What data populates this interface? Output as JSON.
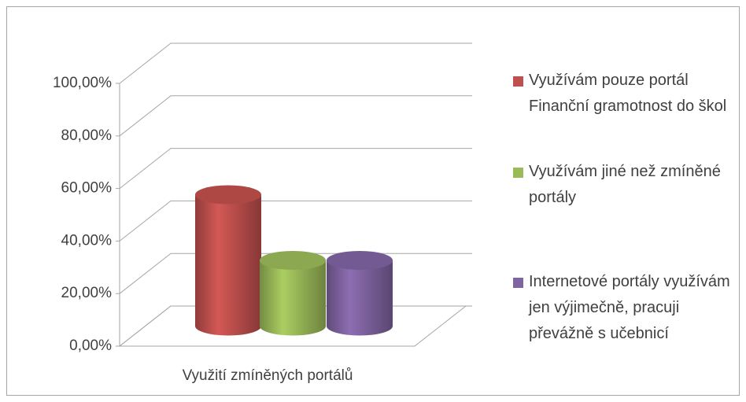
{
  "chart_data": {
    "type": "bar3d",
    "categories": [
      "Využití zmíněných portálů"
    ],
    "series": [
      {
        "name": "Využívám pouze portál Finanční gramotnost do škol",
        "color": "#c0504d",
        "values": [
          50
        ]
      },
      {
        "name": "Využívám jiné než zmíněné portály",
        "color": "#9bbb59",
        "values": [
          25
        ]
      },
      {
        "name": "Internetové portály využívám jen výjimečně, pracuji převážně s učebnicí",
        "color": "#8064a2",
        "values": [
          25
        ]
      }
    ],
    "ylim": [
      0,
      100
    ],
    "yticks": [
      {
        "value": 0,
        "label": "0,00%"
      },
      {
        "value": 20,
        "label": "20,00%"
      },
      {
        "value": 40,
        "label": "40,00%"
      },
      {
        "value": 60,
        "label": "60,00%"
      },
      {
        "value": 80,
        "label": "80,00%"
      },
      {
        "value": 100,
        "label": "100,00%"
      }
    ],
    "grid": true,
    "legend": "right"
  }
}
